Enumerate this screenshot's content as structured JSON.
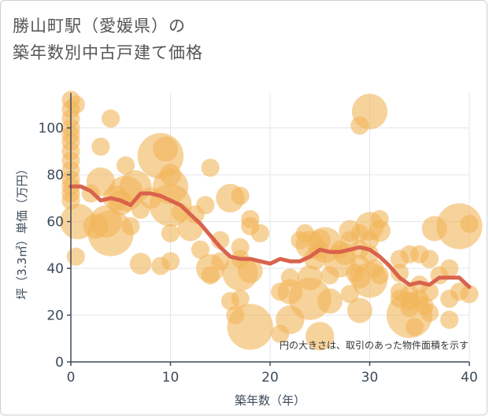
{
  "title_line1": "勝山町駅（愛媛県）の",
  "title_line2": "築年数別中古戸建て価格",
  "colors": {
    "bubble": "#f2b65a",
    "line": "#d9634c",
    "grid": "#e2e6ea",
    "axis": "#3c4b5a"
  },
  "chart_data": {
    "type": "scatter",
    "xlabel": "築年数（年）",
    "ylabel": "坪（3.3㎡）単価（万円）",
    "xlim": [
      0,
      40
    ],
    "ylim": [
      0,
      115
    ],
    "xticks": [
      "0",
      "10",
      "20",
      "30",
      "40"
    ],
    "yticks": [
      "0",
      "20",
      "40",
      "60",
      "80",
      "100"
    ],
    "annotation": "円の大きさは、取引のあった物件面積を示す",
    "grid": true,
    "points": [
      {
        "x": 0,
        "y": 112,
        "s": 3
      },
      {
        "x": 0,
        "y": 108,
        "s": 3
      },
      {
        "x": 0,
        "y": 104,
        "s": 3
      },
      {
        "x": 0,
        "y": 100,
        "s": 3
      },
      {
        "x": 0,
        "y": 97,
        "s": 3
      },
      {
        "x": 0,
        "y": 94,
        "s": 3
      },
      {
        "x": 0,
        "y": 90,
        "s": 3
      },
      {
        "x": 0,
        "y": 86,
        "s": 3
      },
      {
        "x": 0,
        "y": 82,
        "s": 3
      },
      {
        "x": 0,
        "y": 78,
        "s": 3
      },
      {
        "x": 0,
        "y": 75,
        "s": 3
      },
      {
        "x": 0,
        "y": 72,
        "s": 3
      },
      {
        "x": 0,
        "y": 69,
        "s": 3
      },
      {
        "x": 0.5,
        "y": 110,
        "s": 3
      },
      {
        "x": 0.5,
        "y": 45,
        "s": 3
      },
      {
        "x": 0.7,
        "y": 60,
        "s": 8
      },
      {
        "x": 2,
        "y": 72,
        "s": 3
      },
      {
        "x": 2.5,
        "y": 58,
        "s": 5
      },
      {
        "x": 3,
        "y": 77,
        "s": 6
      },
      {
        "x": 3,
        "y": 92,
        "s": 3
      },
      {
        "x": 3.5,
        "y": 60,
        "s": 7
      },
      {
        "x": 4,
        "y": 104,
        "s": 3
      },
      {
        "x": 4,
        "y": 55,
        "s": 11
      },
      {
        "x": 4.5,
        "y": 70,
        "s": 5
      },
      {
        "x": 5,
        "y": 68,
        "s": 5
      },
      {
        "x": 5.5,
        "y": 84,
        "s": 3
      },
      {
        "x": 5.5,
        "y": 72,
        "s": 8
      },
      {
        "x": 6,
        "y": 58,
        "s": 3
      },
      {
        "x": 6.5,
        "y": 75,
        "s": 7
      },
      {
        "x": 7,
        "y": 65,
        "s": 3
      },
      {
        "x": 7,
        "y": 42,
        "s": 4
      },
      {
        "x": 8,
        "y": 70,
        "s": 4
      },
      {
        "x": 9,
        "y": 88,
        "s": 11
      },
      {
        "x": 9,
        "y": 41,
        "s": 3
      },
      {
        "x": 9.5,
        "y": 91,
        "s": 5
      },
      {
        "x": 10,
        "y": 80,
        "s": 4
      },
      {
        "x": 10,
        "y": 75,
        "s": 8
      },
      {
        "x": 10,
        "y": 67,
        "s": 10
      },
      {
        "x": 10,
        "y": 55,
        "s": 3
      },
      {
        "x": 10,
        "y": 43,
        "s": 3
      },
      {
        "x": 11,
        "y": 64,
        "s": 3
      },
      {
        "x": 12,
        "y": 57,
        "s": 5
      },
      {
        "x": 12.5,
        "y": 63,
        "s": 3
      },
      {
        "x": 13,
        "y": 48,
        "s": 3
      },
      {
        "x": 13.5,
        "y": 67,
        "s": 3
      },
      {
        "x": 14,
        "y": 83,
        "s": 3
      },
      {
        "x": 14,
        "y": 40,
        "s": 6
      },
      {
        "x": 14,
        "y": 37,
        "s": 3
      },
      {
        "x": 15,
        "y": 52,
        "s": 3
      },
      {
        "x": 15,
        "y": 43,
        "s": 3
      },
      {
        "x": 16,
        "y": 70,
        "s": 6
      },
      {
        "x": 16,
        "y": 26,
        "s": 3
      },
      {
        "x": 16.5,
        "y": 20,
        "s": 3
      },
      {
        "x": 17,
        "y": 71,
        "s": 3
      },
      {
        "x": 17,
        "y": 49,
        "s": 3
      },
      {
        "x": 17,
        "y": 44,
        "s": 3
      },
      {
        "x": 17,
        "y": 38,
        "s": 8
      },
      {
        "x": 17,
        "y": 27,
        "s": 3
      },
      {
        "x": 18,
        "y": 61,
        "s": 3
      },
      {
        "x": 18,
        "y": 58,
        "s": 3
      },
      {
        "x": 18,
        "y": 39,
        "s": 5
      },
      {
        "x": 18,
        "y": 15,
        "s": 11
      },
      {
        "x": 19,
        "y": 55,
        "s": 3
      },
      {
        "x": 21,
        "y": 30,
        "s": 3
      },
      {
        "x": 21,
        "y": 12,
        "s": 3
      },
      {
        "x": 22,
        "y": 36,
        "s": 3
      },
      {
        "x": 22,
        "y": 30,
        "s": 5
      },
      {
        "x": 22,
        "y": 18,
        "s": 6
      },
      {
        "x": 23,
        "y": 52,
        "s": 3
      },
      {
        "x": 23.5,
        "y": 55,
        "s": 3
      },
      {
        "x": 24,
        "y": 50,
        "s": 6
      },
      {
        "x": 24,
        "y": 36,
        "s": 5
      },
      {
        "x": 24,
        "y": 27,
        "s": 10
      },
      {
        "x": 24.5,
        "y": 44,
        "s": 4
      },
      {
        "x": 25,
        "y": 52,
        "s": 4
      },
      {
        "x": 25,
        "y": 11,
        "s": 6
      },
      {
        "x": 25,
        "y": 48,
        "s": 3
      },
      {
        "x": 25.5,
        "y": 50,
        "s": 8
      },
      {
        "x": 26,
        "y": 37,
        "s": 3
      },
      {
        "x": 26,
        "y": 26,
        "s": 5
      },
      {
        "x": 27,
        "y": 48,
        "s": 3
      },
      {
        "x": 27,
        "y": 43,
        "s": 7
      },
      {
        "x": 27.5,
        "y": 46,
        "s": 4
      },
      {
        "x": 28,
        "y": 56,
        "s": 4
      },
      {
        "x": 28,
        "y": 52,
        "s": 3
      },
      {
        "x": 28,
        "y": 29,
        "s": 3
      },
      {
        "x": 28.5,
        "y": 38,
        "s": 3
      },
      {
        "x": 29,
        "y": 101,
        "s": 3
      },
      {
        "x": 29,
        "y": 55,
        "s": 3
      },
      {
        "x": 29,
        "y": 48,
        "s": 3
      },
      {
        "x": 29,
        "y": 42,
        "s": 3
      },
      {
        "x": 29,
        "y": 36,
        "s": 4
      },
      {
        "x": 29,
        "y": 22,
        "s": 5
      },
      {
        "x": 30,
        "y": 107,
        "s": 8
      },
      {
        "x": 30,
        "y": 58,
        "s": 6
      },
      {
        "x": 30,
        "y": 52,
        "s": 3
      },
      {
        "x": 30,
        "y": 46,
        "s": 3
      },
      {
        "x": 30,
        "y": 35,
        "s": 8
      },
      {
        "x": 30.5,
        "y": 40,
        "s": 3
      },
      {
        "x": 31,
        "y": 61,
        "s": 3
      },
      {
        "x": 31,
        "y": 56,
        "s": 4
      },
      {
        "x": 31,
        "y": 37,
        "s": 3
      },
      {
        "x": 33,
        "y": 44,
        "s": 3
      },
      {
        "x": 33,
        "y": 38,
        "s": 3
      },
      {
        "x": 33,
        "y": 30,
        "s": 3
      },
      {
        "x": 33,
        "y": 27,
        "s": 3
      },
      {
        "x": 34,
        "y": 46,
        "s": 3
      },
      {
        "x": 34,
        "y": 29,
        "s": 3
      },
      {
        "x": 34,
        "y": 26,
        "s": 3
      },
      {
        "x": 34,
        "y": 23,
        "s": 3
      },
      {
        "x": 34,
        "y": 20,
        "s": 11
      },
      {
        "x": 34.5,
        "y": 15,
        "s": 3
      },
      {
        "x": 35,
        "y": 46,
        "s": 3
      },
      {
        "x": 35,
        "y": 33,
        "s": 3
      },
      {
        "x": 35,
        "y": 27,
        "s": 3
      },
      {
        "x": 35.5,
        "y": 24,
        "s": 3
      },
      {
        "x": 36,
        "y": 44,
        "s": 3
      },
      {
        "x": 36,
        "y": 30,
        "s": 3
      },
      {
        "x": 36,
        "y": 21,
        "s": 3
      },
      {
        "x": 36.5,
        "y": 57,
        "s": 5
      },
      {
        "x": 37,
        "y": 37,
        "s": 3
      },
      {
        "x": 38,
        "y": 40,
        "s": 3
      },
      {
        "x": 38,
        "y": 27,
        "s": 3
      },
      {
        "x": 38,
        "y": 18,
        "s": 3
      },
      {
        "x": 39,
        "y": 58,
        "s": 11
      },
      {
        "x": 39,
        "y": 30,
        "s": 3
      },
      {
        "x": 40,
        "y": 59,
        "s": 3
      },
      {
        "x": 40,
        "y": 29,
        "s": 3
      }
    ],
    "trend": [
      {
        "x": 0,
        "y": 75
      },
      {
        "x": 1,
        "y": 75
      },
      {
        "x": 2,
        "y": 73
      },
      {
        "x": 3,
        "y": 69
      },
      {
        "x": 4,
        "y": 70
      },
      {
        "x": 5,
        "y": 69
      },
      {
        "x": 6,
        "y": 67
      },
      {
        "x": 7,
        "y": 72
      },
      {
        "x": 8,
        "y": 72
      },
      {
        "x": 9,
        "y": 71
      },
      {
        "x": 10,
        "y": 69
      },
      {
        "x": 11,
        "y": 67
      },
      {
        "x": 12,
        "y": 63
      },
      {
        "x": 13,
        "y": 59
      },
      {
        "x": 14,
        "y": 54
      },
      {
        "x": 15,
        "y": 49
      },
      {
        "x": 16,
        "y": 45
      },
      {
        "x": 17,
        "y": 44
      },
      {
        "x": 18,
        "y": 44
      },
      {
        "x": 19,
        "y": 43
      },
      {
        "x": 20,
        "y": 42
      },
      {
        "x": 21,
        "y": 44
      },
      {
        "x": 22,
        "y": 43
      },
      {
        "x": 23,
        "y": 43
      },
      {
        "x": 24,
        "y": 45
      },
      {
        "x": 25,
        "y": 48
      },
      {
        "x": 26,
        "y": 47
      },
      {
        "x": 27,
        "y": 47
      },
      {
        "x": 28,
        "y": 48
      },
      {
        "x": 29,
        "y": 49
      },
      {
        "x": 30,
        "y": 48
      },
      {
        "x": 31,
        "y": 45
      },
      {
        "x": 32,
        "y": 41
      },
      {
        "x": 33,
        "y": 36
      },
      {
        "x": 34,
        "y": 33
      },
      {
        "x": 35,
        "y": 34
      },
      {
        "x": 36,
        "y": 33
      },
      {
        "x": 37,
        "y": 36
      },
      {
        "x": 38,
        "y": 36
      },
      {
        "x": 39,
        "y": 36
      },
      {
        "x": 40,
        "y": 32
      }
    ]
  }
}
